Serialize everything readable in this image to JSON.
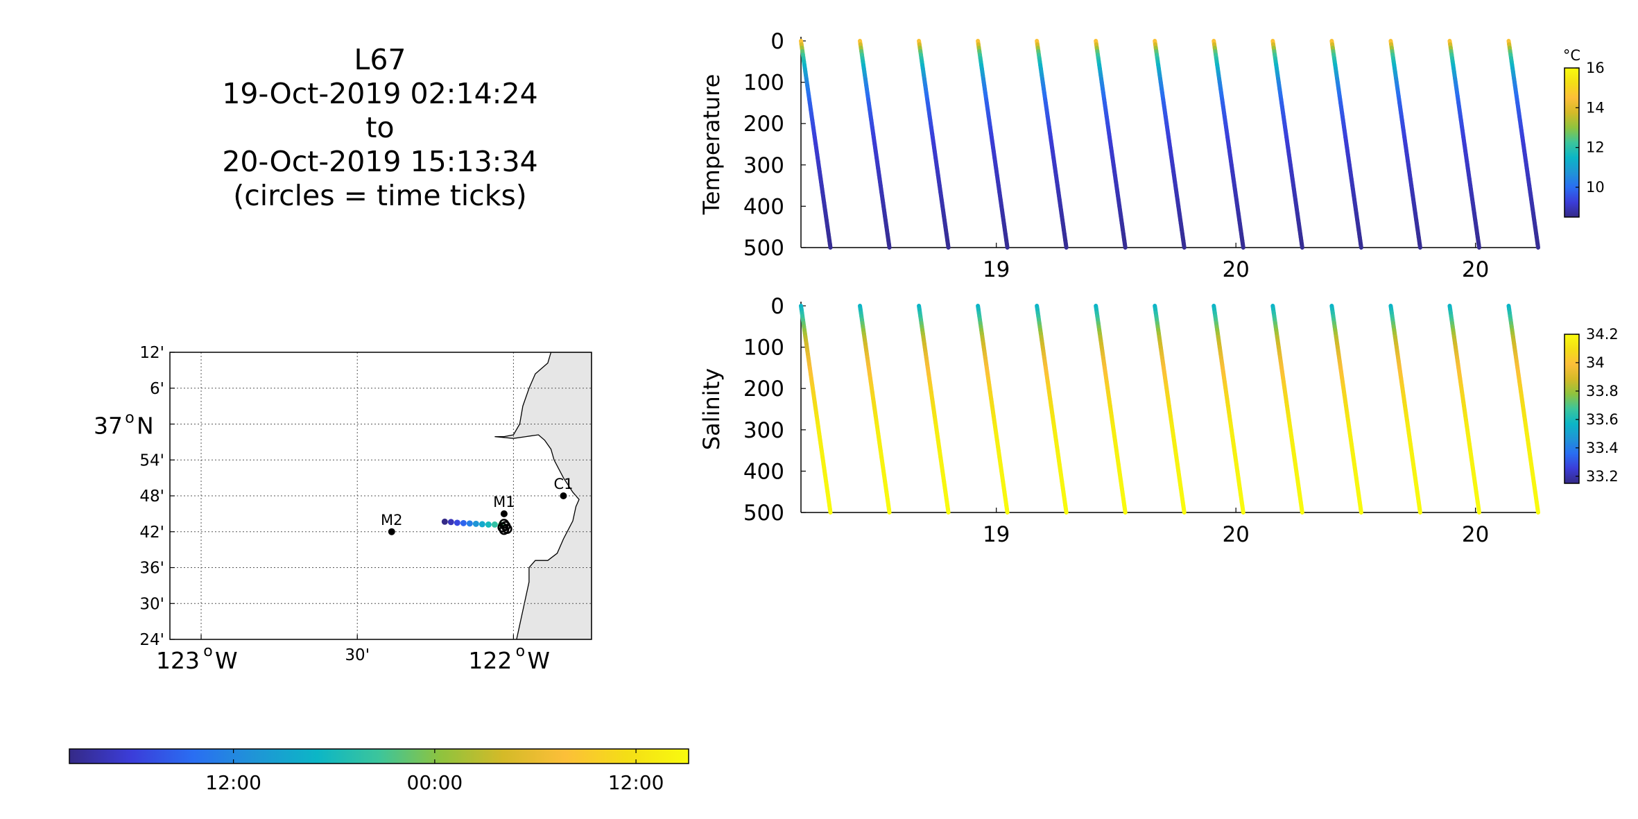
{
  "title_lines": [
    "L67",
    "19-Oct-2019 02:14:24",
    "to",
    "20-Oct-2019 15:13:34",
    "(circles = time ticks)"
  ],
  "colormap": [
    "#352a87",
    "#3b3dd9",
    "#2a6ef2",
    "#1f95d6",
    "#0cb6c6",
    "#3cc59b",
    "#8fc33e",
    "#d4ba28",
    "#fcbf39",
    "#f4de16",
    "#f9fb0e"
  ],
  "chart_data": [
    {
      "type": "map",
      "name": "track-map",
      "lon_ticks": [
        {
          "value": -123.0,
          "label": "123",
          "suffix": "W",
          "deg": true
        },
        {
          "value": -122.5,
          "label": "30'",
          "deg": false
        },
        {
          "value": -122.0,
          "label": "122",
          "suffix": "W",
          "deg": true
        }
      ],
      "lat_ticks": [
        {
          "value": 37.2,
          "label": "12'"
        },
        {
          "value": 37.1,
          "label": "6'"
        },
        {
          "value": 37.0,
          "label": "37",
          "suffix": "N",
          "deg": true
        },
        {
          "value": 36.9,
          "label": "54'"
        },
        {
          "value": 36.8,
          "label": "48'"
        },
        {
          "value": 36.7,
          "label": "42'"
        },
        {
          "value": 36.6,
          "label": "36'"
        },
        {
          "value": 36.5,
          "label": "30'"
        },
        {
          "value": 36.4,
          "label": "24'"
        }
      ],
      "xlim": [
        -123.1,
        -121.75
      ],
      "ylim": [
        36.4,
        37.2
      ],
      "grid": true,
      "land_color": "#e6e6e6",
      "stations": [
        {
          "name": "M2",
          "lon": -122.39,
          "lat": 36.7
        },
        {
          "name": "M1",
          "lon": -122.03,
          "lat": 36.75
        },
        {
          "name": "C1",
          "lon": -121.84,
          "lat": 36.8
        }
      ],
      "track": [
        {
          "lon": -122.22,
          "lat": 36.728,
          "t": 0.0
        },
        {
          "lon": -122.2,
          "lat": 36.727,
          "t": 0.06
        },
        {
          "lon": -122.18,
          "lat": 36.725,
          "t": 0.12
        },
        {
          "lon": -122.16,
          "lat": 36.724,
          "t": 0.18
        },
        {
          "lon": -122.14,
          "lat": 36.723,
          "t": 0.24
        },
        {
          "lon": -122.12,
          "lat": 36.722,
          "t": 0.3
        },
        {
          "lon": -122.1,
          "lat": 36.721,
          "t": 0.36
        },
        {
          "lon": -122.08,
          "lat": 36.72,
          "t": 0.42
        },
        {
          "lon": -122.06,
          "lat": 36.72,
          "t": 0.48
        },
        {
          "lon": -122.04,
          "lat": 36.719,
          "t": 0.54
        }
      ],
      "time_tick_circles": [
        {
          "lon": -122.03,
          "lat": 36.722
        },
        {
          "lon": -122.025,
          "lat": 36.716
        },
        {
          "lon": -122.035,
          "lat": 36.712
        },
        {
          "lon": -122.02,
          "lat": 36.708
        },
        {
          "lon": -122.03,
          "lat": 36.705
        }
      ]
    },
    {
      "type": "colorbar",
      "name": "time-colorbar",
      "tick_labels": [
        "12:00",
        "00:00",
        "12:00"
      ],
      "tick_positions": [
        0.265,
        0.59,
        0.915
      ]
    },
    {
      "type": "scatter",
      "name": "temperature-section",
      "ylabel": "Temperature",
      "ylim": [
        500,
        0
      ],
      "yticks": [
        0,
        100,
        200,
        300,
        400,
        500
      ],
      "xtick_labels": [
        {
          "label": "19",
          "pos": 0.265
        },
        {
          "label": "20",
          "pos": 0.59
        },
        {
          "label": "20",
          "pos": 0.915
        }
      ],
      "profile_starts": [
        0.0,
        0.08,
        0.16,
        0.24,
        0.32,
        0.4,
        0.48,
        0.56,
        0.64,
        0.72,
        0.8,
        0.88,
        0.96
      ],
      "profile_drift": 0.04,
      "value_by_depth": [
        [
          0,
          15.0
        ],
        [
          10,
          14.0
        ],
        [
          30,
          12.5
        ],
        [
          60,
          11.5
        ],
        [
          100,
          10.5
        ],
        [
          150,
          9.8
        ],
        [
          250,
          9.2
        ],
        [
          500,
          8.6
        ]
      ],
      "colorbar": {
        "unit": "°C",
        "min": 8.5,
        "max": 16,
        "ticks": [
          16,
          14,
          12,
          10
        ]
      }
    },
    {
      "type": "scatter",
      "name": "salinity-section",
      "ylabel": "Salinity",
      "ylim": [
        500,
        0
      ],
      "yticks": [
        0,
        100,
        200,
        300,
        400,
        500
      ],
      "xtick_labels": [
        {
          "label": "19",
          "pos": 0.265
        },
        {
          "label": "20",
          "pos": 0.59
        },
        {
          "label": "20",
          "pos": 0.915
        }
      ],
      "profile_starts": [
        0.0,
        0.08,
        0.16,
        0.24,
        0.32,
        0.4,
        0.48,
        0.56,
        0.64,
        0.72,
        0.8,
        0.88,
        0.96
      ],
      "profile_drift": 0.04,
      "value_by_depth": [
        [
          0,
          33.55
        ],
        [
          40,
          33.7
        ],
        [
          80,
          33.85
        ],
        [
          130,
          33.95
        ],
        [
          200,
          34.05
        ],
        [
          300,
          34.15
        ],
        [
          500,
          34.2
        ]
      ],
      "colorbar": {
        "unit": "",
        "min": 33.15,
        "max": 34.2,
        "ticks": [
          34.2,
          34,
          33.8,
          33.6,
          33.4,
          33.2
        ]
      }
    }
  ]
}
